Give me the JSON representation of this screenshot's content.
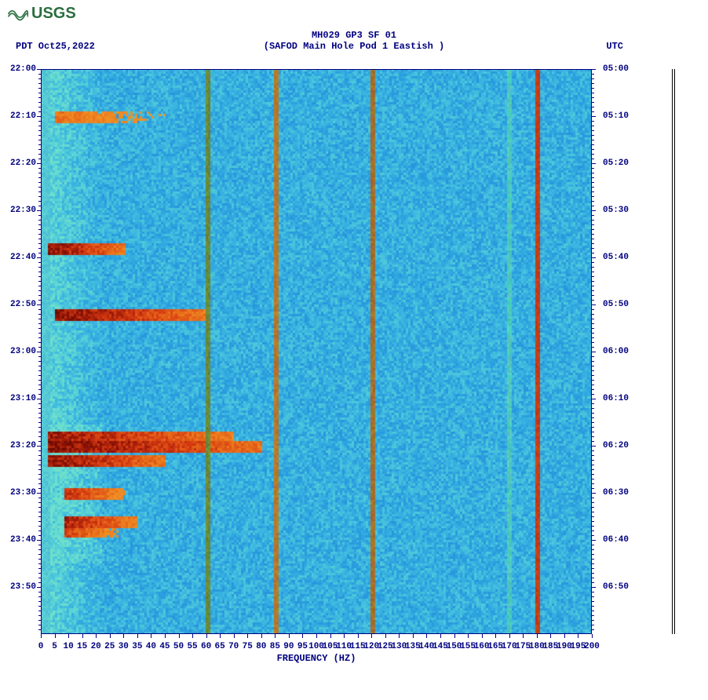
{
  "logo_text": "USGS",
  "header": {
    "line1": "MH029 GP3 SF 01",
    "line2": "(SAFOD Main Hole Pod 1 Eastish )"
  },
  "date_left": "PDT  Oct25,2022",
  "date_right": "UTC",
  "spectrogram": {
    "type": "heatmap",
    "x_range": [
      0,
      200
    ],
    "x_tick_step": 5,
    "x_label": "FREQUENCY (HZ)",
    "left_time_ticks": [
      "22:00",
      "22:10",
      "22:20",
      "22:30",
      "22:40",
      "22:50",
      "23:00",
      "23:10",
      "23:20",
      "23:30",
      "23:40",
      "23:50"
    ],
    "right_time_ticks": [
      "05:00",
      "05:10",
      "05:20",
      "05:30",
      "05:40",
      "05:50",
      "06:00",
      "06:10",
      "06:20",
      "06:30",
      "06:40",
      "06:50"
    ],
    "time_rows": 120,
    "background_base": "#2fa6e0",
    "noise_palette": [
      "#1e7dd6",
      "#2590dc",
      "#2fa6e0",
      "#3fb9e0",
      "#56d0d8",
      "#6fe0cc"
    ],
    "event_palette": [
      "#f7e24a",
      "#f4b030",
      "#ec7a1e",
      "#d63a12",
      "#8c1306",
      "#5a0800"
    ],
    "low_freq_column_color": "#6fe0cc",
    "vertical_lines": [
      {
        "freq": 60,
        "color": "#6a8a3a",
        "width": 1
      },
      {
        "freq": 85,
        "color": "#b87828",
        "width": 1
      },
      {
        "freq": 120,
        "color": "#a87028",
        "width": 1
      },
      {
        "freq": 170,
        "color": "#4fc8c0",
        "width": 2
      },
      {
        "freq": 180,
        "color": "#c04018",
        "width": 1
      }
    ],
    "horizontal_events": [
      {
        "time_row": 10,
        "freq_start": 5,
        "freq_end": 55,
        "intensity": 0.5
      },
      {
        "time_row": 38,
        "freq_start": 2,
        "freq_end": 30,
        "intensity": 0.95
      },
      {
        "time_row": 52,
        "freq_start": 5,
        "freq_end": 60,
        "intensity": 0.95
      },
      {
        "time_row": 78,
        "freq_start": 2,
        "freq_end": 70,
        "intensity": 0.9
      },
      {
        "time_row": 80,
        "freq_start": 2,
        "freq_end": 80,
        "intensity": 0.98
      },
      {
        "time_row": 83,
        "freq_start": 2,
        "freq_end": 45,
        "intensity": 0.95
      },
      {
        "time_row": 90,
        "freq_start": 8,
        "freq_end": 30,
        "intensity": 0.75
      },
      {
        "time_row": 96,
        "freq_start": 8,
        "freq_end": 35,
        "intensity": 0.85
      },
      {
        "time_row": 98,
        "freq_start": 8,
        "freq_end": 28,
        "intensity": 0.7
      }
    ],
    "low_freq_energy": {
      "freq_start": 3,
      "freq_end": 22,
      "base_intensity": 0.35
    },
    "title_fontsize": 12,
    "label_fontsize": 12,
    "tick_fontsize": 11,
    "text_color": "#000080",
    "font_family": "Courier New"
  }
}
